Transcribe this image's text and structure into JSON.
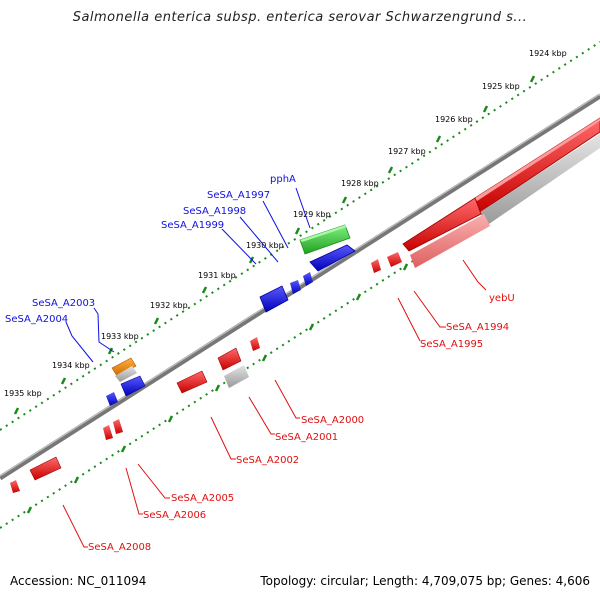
{
  "title": "Salmonella enterica subsp. enterica serovar Schwarzengrund s...",
  "footer": {
    "accession": "Accession: NC_011094",
    "summary": "Topology: circular; Length: 4,709,075 bp; Genes: 4,606"
  },
  "colors": {
    "forward_gene": "#1010e0",
    "reverse_gene": "#ee1010",
    "reverse_pseudo": "#f08080",
    "rna_gene": "#30c030",
    "other_gene": "#f08a00",
    "gray_feature": "#b8b8b8",
    "backbone": "#777777",
    "ticks": "#1a8a1a"
  },
  "kbp_labels": [
    "1924 kbp",
    "1925 kbp",
    "1926 kbp",
    "1927 kbp",
    "1928 kbp",
    "1929 kbp",
    "1930 kbp",
    "1931 kbp",
    "1932 kbp",
    "1933 kbp",
    "1934 kbp",
    "1935 kbp"
  ],
  "forward_labels": [
    "pphA",
    "SeSA_A1997",
    "SeSA_A1998",
    "SeSA_A1999",
    "SeSA_A2003",
    "SeSA_A2004"
  ],
  "reverse_labels": [
    "yebU",
    "SeSA_A1994",
    "SeSA_A1995",
    "SeSA_A2000",
    "SeSA_A2001",
    "SeSA_A2002",
    "SeSA_A2005",
    "SeSA_A2006",
    "SeSA_A2008"
  ]
}
